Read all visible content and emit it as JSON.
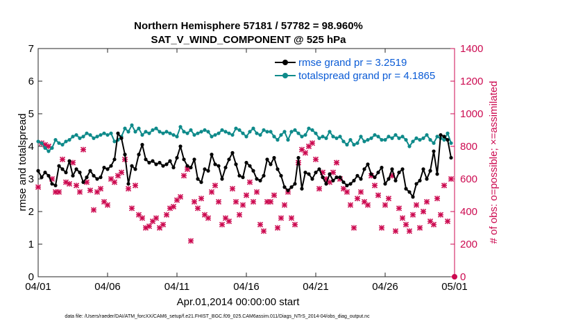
{
  "chart_data": {
    "type": "line",
    "title": "Northern Hemisphere 57181 / 57782 = 98.960%",
    "subtitle": "SAT_V_WIND_COMPONENT @ 525 hPa",
    "xlabel": "Apr.01,2014 00:00:00 start",
    "ylabel_left": "rmse and totalspread",
    "ylabel_right": "# of obs: o=possible; ×=assimilated",
    "ylim_left": [
      0,
      7
    ],
    "ylim_right": [
      0,
      1400
    ],
    "xlim": [
      0,
      30
    ],
    "x_tick_labels": [
      "04/01",
      "04/06",
      "04/11",
      "04/16",
      "04/21",
      "04/26",
      "05/01"
    ],
    "y_left_tick_labels": [
      "0",
      "1",
      "2",
      "3",
      "4",
      "5",
      "6",
      "7"
    ],
    "y_right_tick_labels": [
      "0",
      "200",
      "400",
      "600",
      "800",
      "1000",
      "1200",
      "1400"
    ],
    "grid": false,
    "legend_position": "top-right",
    "footer": "data file: /Users/raeder/DAI/ATM_forcXX/CAM6_setup/f.e21.FHIST_BGC.f09_025.CAM6assim.011/Diags_NTrS_2014-04/obs_diag_output.nc",
    "colors": {
      "rmse": "#000000",
      "totalspread": "#0e8a8a",
      "obs": "#cc0a50",
      "legend_text": "#0a5bd6",
      "right_axis": "#cc0a50"
    },
    "series": [
      {
        "name": "rmse grand pr = 3.2519",
        "x": [
          0.0,
          0.25,
          0.5,
          0.75,
          1.0,
          1.25,
          1.5,
          1.75,
          2.0,
          2.25,
          2.5,
          2.75,
          3.0,
          3.25,
          3.5,
          3.75,
          4.0,
          4.25,
          4.5,
          4.75,
          5.0,
          5.25,
          5.5,
          5.75,
          6.0,
          6.25,
          6.5,
          6.75,
          7.0,
          7.25,
          7.5,
          7.75,
          8.0,
          8.25,
          8.5,
          8.75,
          9.0,
          9.25,
          9.5,
          9.75,
          10.0,
          10.25,
          10.5,
          10.75,
          11.0,
          11.25,
          11.5,
          11.75,
          12.0,
          12.25,
          12.5,
          12.75,
          13.0,
          13.25,
          13.5,
          13.75,
          14.0,
          14.25,
          14.5,
          14.75,
          15.0,
          15.25,
          15.5,
          15.75,
          16.0,
          16.25,
          16.5,
          16.75,
          17.0,
          17.25,
          17.5,
          17.75,
          18.0,
          18.25,
          18.5,
          18.75,
          19.0,
          19.25,
          19.5,
          19.75,
          20.0,
          20.25,
          20.5,
          20.75,
          21.0,
          21.25,
          21.5,
          21.75,
          22.0,
          22.25,
          22.5,
          22.75,
          23.0,
          23.25,
          23.5,
          23.75,
          24.0,
          24.25,
          24.5,
          24.75,
          25.0,
          25.25,
          25.5,
          25.75,
          26.0,
          26.25,
          26.5,
          26.75,
          27.0,
          27.25,
          27.5,
          27.75,
          28.0,
          28.25,
          28.5,
          28.75,
          29.0,
          29.25,
          29.5,
          29.75
        ],
        "values": [
          3.25,
          3.05,
          3.2,
          3.1,
          2.85,
          2.8,
          3.4,
          3.3,
          3.2,
          3.55,
          3.1,
          3.3,
          3.2,
          2.9,
          3.05,
          3.25,
          3.1,
          3.0,
          3.05,
          3.35,
          3.3,
          3.4,
          3.6,
          4.4,
          4.25,
          3.75,
          2.85,
          3.4,
          3.3,
          3.75,
          4.05,
          3.6,
          3.5,
          3.55,
          3.45,
          3.5,
          3.4,
          3.45,
          3.55,
          3.35,
          3.65,
          4.0,
          3.6,
          3.4,
          3.35,
          3.6,
          3.0,
          2.9,
          3.3,
          3.25,
          3.75,
          3.45,
          3.4,
          3.0,
          3.35,
          3.6,
          3.8,
          3.45,
          3.1,
          3.05,
          3.5,
          3.4,
          3.25,
          3.0,
          2.95,
          3.1,
          3.6,
          3.45,
          3.65,
          3.3,
          3.1,
          2.75,
          2.65,
          2.75,
          2.85,
          3.65,
          2.7,
          3.2,
          3.15,
          3.0,
          3.2,
          3.3,
          3.05,
          2.85,
          3.15,
          2.95,
          3.05,
          3.05,
          2.9,
          2.8,
          2.85,
          2.95,
          3.1,
          3.0,
          3.3,
          3.45,
          3.15,
          3.05,
          3.2,
          3.35,
          2.85,
          3.0,
          3.3,
          2.95,
          3.2,
          3.3,
          2.7,
          2.6,
          2.45,
          2.85,
          2.95,
          3.3,
          3.0,
          3.25,
          3.85,
          3.15,
          4.35,
          4.3,
          4.2,
          3.65
        ]
      },
      {
        "name": "totalspread grand pr = 4.1865",
        "x": [
          0.0,
          0.25,
          0.5,
          0.75,
          1.0,
          1.25,
          1.5,
          1.75,
          2.0,
          2.25,
          2.5,
          2.75,
          3.0,
          3.25,
          3.5,
          3.75,
          4.0,
          4.25,
          4.5,
          4.75,
          5.0,
          5.25,
          5.5,
          5.75,
          6.0,
          6.25,
          6.5,
          6.75,
          7.0,
          7.25,
          7.5,
          7.75,
          8.0,
          8.25,
          8.5,
          8.75,
          9.0,
          9.25,
          9.5,
          9.75,
          10.0,
          10.25,
          10.5,
          10.75,
          11.0,
          11.25,
          11.5,
          11.75,
          12.0,
          12.25,
          12.5,
          12.75,
          13.0,
          13.25,
          13.5,
          13.75,
          14.0,
          14.25,
          14.5,
          14.75,
          15.0,
          15.25,
          15.5,
          15.75,
          16.0,
          16.25,
          16.5,
          16.75,
          17.0,
          17.25,
          17.5,
          17.75,
          18.0,
          18.25,
          18.5,
          18.75,
          19.0,
          19.25,
          19.5,
          19.75,
          20.0,
          20.25,
          20.5,
          20.75,
          21.0,
          21.25,
          21.5,
          21.75,
          22.0,
          22.25,
          22.5,
          22.75,
          23.0,
          23.25,
          23.5,
          23.75,
          24.0,
          24.25,
          24.5,
          24.75,
          25.0,
          25.25,
          25.5,
          25.75,
          26.0,
          26.25,
          26.5,
          26.75,
          27.0,
          27.25,
          27.5,
          27.75,
          28.0,
          28.25,
          28.5,
          28.75,
          29.0,
          29.25,
          29.5,
          29.75
        ],
        "values": [
          4.15,
          4.1,
          3.95,
          3.85,
          3.95,
          4.2,
          4.1,
          4.05,
          4.15,
          4.2,
          4.3,
          4.35,
          4.25,
          4.3,
          4.4,
          4.35,
          4.25,
          4.3,
          4.35,
          4.4,
          4.35,
          4.4,
          4.15,
          4.2,
          4.3,
          4.55,
          4.45,
          4.65,
          4.45,
          4.55,
          4.35,
          4.45,
          4.4,
          4.5,
          4.55,
          4.45,
          4.4,
          4.45,
          4.4,
          4.35,
          4.3,
          4.6,
          4.45,
          4.4,
          4.5,
          4.35,
          4.4,
          4.45,
          4.5,
          4.45,
          4.3,
          4.35,
          4.4,
          4.5,
          4.45,
          4.4,
          4.35,
          4.55,
          4.5,
          4.4,
          4.3,
          4.45,
          4.55,
          4.4,
          4.35,
          4.5,
          4.45,
          4.45,
          4.3,
          4.2,
          4.35,
          4.45,
          4.2,
          4.45,
          4.5,
          4.4,
          4.3,
          4.35,
          4.55,
          4.5,
          4.4,
          4.25,
          4.3,
          4.25,
          4.45,
          4.3,
          4.25,
          4.3,
          4.15,
          4.05,
          4.2,
          4.05,
          4.1,
          4.3,
          4.15,
          4.2,
          4.25,
          4.35,
          4.3,
          4.2,
          4.2,
          4.3,
          4.25,
          4.35,
          4.25,
          4.3,
          4.2,
          4.0,
          4.15,
          4.25,
          4.2,
          4.25,
          4.35,
          4.2,
          4.1,
          4.3,
          4.25,
          4.2,
          4.4,
          4.1
        ]
      },
      {
        "name": "obs_assimilated",
        "axis": "right",
        "x": [
          0.0,
          0.25,
          0.5,
          0.75,
          1.0,
          1.25,
          1.5,
          1.75,
          2.0,
          2.25,
          2.5,
          2.75,
          3.0,
          3.25,
          3.5,
          3.75,
          4.0,
          4.25,
          4.5,
          4.75,
          5.0,
          5.25,
          5.5,
          5.75,
          6.0,
          6.25,
          6.5,
          6.75,
          7.0,
          7.25,
          7.5,
          7.75,
          8.0,
          8.25,
          8.5,
          8.75,
          9.0,
          9.25,
          9.5,
          9.75,
          10.0,
          10.25,
          10.5,
          10.75,
          11.0,
          11.25,
          11.5,
          11.75,
          12.0,
          12.25,
          12.5,
          12.75,
          13.0,
          13.25,
          13.5,
          13.75,
          14.0,
          14.25,
          14.5,
          14.75,
          15.0,
          15.25,
          15.5,
          15.75,
          16.0,
          16.25,
          16.5,
          16.75,
          17.0,
          17.25,
          17.5,
          17.75,
          18.0,
          18.25,
          18.5,
          18.75,
          19.0,
          19.25,
          19.5,
          19.75,
          20.0,
          20.25,
          20.5,
          20.75,
          21.0,
          21.25,
          21.5,
          21.75,
          22.0,
          22.25,
          22.5,
          22.75,
          23.0,
          23.25,
          23.5,
          23.75,
          24.0,
          24.25,
          24.5,
          24.75,
          25.0,
          25.25,
          25.5,
          25.75,
          26.0,
          26.25,
          26.5,
          26.75,
          27.0,
          27.25,
          27.5,
          27.75,
          28.0,
          28.25,
          28.5,
          28.75,
          29.0,
          29.25,
          29.5,
          29.75
        ],
        "values": [
          550,
          820,
          810,
          800,
          600,
          520,
          520,
          720,
          580,
          570,
          700,
          560,
          520,
          780,
          580,
          530,
          410,
          520,
          540,
          460,
          440,
          600,
          580,
          620,
          640,
          720,
          540,
          420,
          560,
          380,
          360,
          300,
          310,
          340,
          360,
          300,
          320,
          380,
          420,
          430,
          470,
          490,
          620,
          660,
          220,
          460,
          420,
          480,
          380,
          360,
          520,
          560,
          460,
          320,
          360,
          340,
          540,
          460,
          380,
          440,
          500,
          580,
          460,
          520,
          320,
          280,
          460,
          460,
          500,
          300,
          360,
          440,
          520,
          360,
          320,
          700,
          780,
          760,
          800,
          820,
          720,
          540,
          640,
          600,
          580,
          640,
          700,
          600,
          540,
          520,
          440,
          300,
          480,
          520,
          460,
          440,
          620,
          560,
          500,
          300,
          440,
          480,
          620,
          280,
          420,
          360,
          320,
          280,
          380,
          440,
          300,
          400,
          460,
          340,
          320,
          480,
          380,
          560,
          340,
          600
        ]
      }
    ]
  }
}
